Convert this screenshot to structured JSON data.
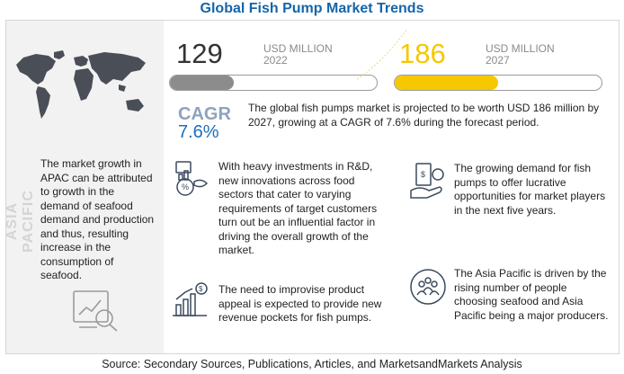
{
  "title": "Global Fish Pump Market Trends",
  "region": {
    "label": "ASIA PACIFIC",
    "text": "The market growth in APAC can be attributed to growth in the demand of seafood demand and production and thus, resulting increase in the consumption of seafood."
  },
  "stats": {
    "start": {
      "value": "129",
      "unit": "USD MILLION",
      "year": "2022",
      "bar_fill_fraction": 0.31,
      "bar_color": "#8c8c8c"
    },
    "end": {
      "value": "186",
      "unit": "USD MILLION",
      "year": "2027",
      "bar_fill_fraction": 0.5,
      "bar_color": "#f5c800"
    }
  },
  "cagr": {
    "label": "CAGR",
    "value": "7.6%",
    "summary": "The global fish pumps market is projected to be worth USD 186 million by 2027, growing at a CAGR of 7.6% during the forecast period."
  },
  "points": [
    {
      "icon": "seafood-rd-icon",
      "text": "With heavy investments in R&D, new innovations across food sectors that cater to varying requirements of target customers turn out be an influential factor in driving the overall growth of the market."
    },
    {
      "icon": "product-growth-icon",
      "text": "The need to improvise product appeal is expected to provide new revenue pockets for fish pumps."
    },
    {
      "icon": "money-demand-icon",
      "text": "The growing demand for fish pumps to offer lucrative opportunities for market players in the next five years."
    },
    {
      "icon": "people-icon",
      "text": "The Asia Pacific is driven by the rising number of people choosing seafood and Asia Pacific being a major producers."
    }
  ],
  "source": "Source: Secondary Sources, Publications, Articles, and MarketsandMarkets Analysis",
  "colors": {
    "title": "#1565a9",
    "accent_yellow": "#f5c800",
    "cagr_value": "#1d6fb8"
  }
}
